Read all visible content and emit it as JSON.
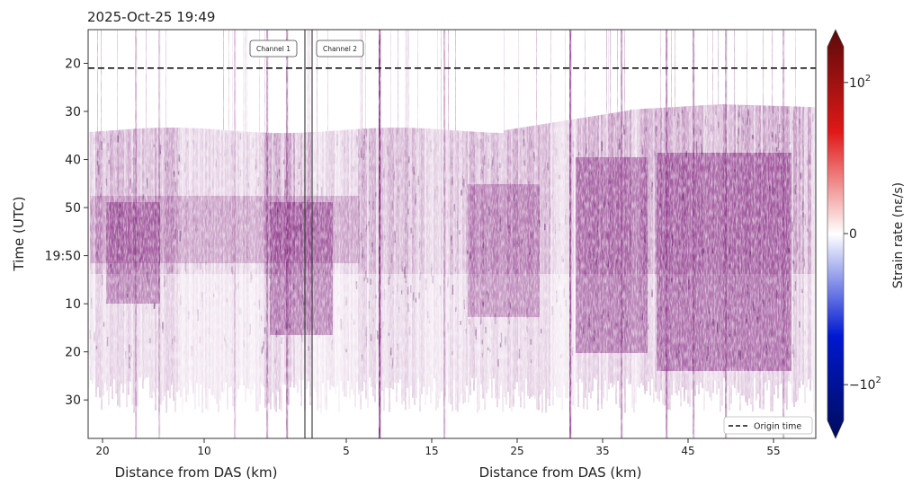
{
  "chart_data": {
    "type": "heatmap",
    "title": "2025-Oct-25 19:49",
    "ylabel": "Time (UTC)",
    "y_ticks": [
      {
        "label": "20",
        "seconds": 20
      },
      {
        "label": "30",
        "seconds": 30
      },
      {
        "label": "40",
        "seconds": 40
      },
      {
        "label": "50",
        "seconds": 50
      },
      {
        "label": "19:50",
        "seconds": 60
      },
      {
        "label": "10",
        "seconds": 70
      },
      {
        "label": "20",
        "seconds": 80
      },
      {
        "label": "30",
        "seconds": 90
      }
    ],
    "ylim_seconds": [
      13,
      98
    ],
    "x_axes": [
      {
        "xlabel": "Distance from DAS (km)",
        "ticks": [
          "20",
          "10"
        ]
      },
      {
        "xlabel": "Distance from DAS (km)",
        "ticks": [
          "5",
          "15",
          "25",
          "35",
          "45",
          "55"
        ]
      }
    ],
    "origin_time_seconds": 21,
    "channels": [
      "Channel 1",
      "Channel 2"
    ],
    "legend": {
      "label": "Origin time",
      "placement": "lower-right"
    },
    "colorbar": {
      "label": "Strain rate (nε/s)",
      "ticks": [
        {
          "base": "10",
          "exp": "2",
          "neg": false,
          "value": 100
        },
        {
          "base": "0",
          "exp": "",
          "neg": false,
          "value": 0
        },
        {
          "base": "10",
          "exp": "2",
          "neg": true,
          "value": -100
        }
      ],
      "colormap": "seismic",
      "colors": [
        "#000c5a",
        "#0018d0",
        "#ffffff",
        "#e01818",
        "#5a0a0a"
      ]
    },
    "signal_color": "#7a1475",
    "grid": false
  }
}
